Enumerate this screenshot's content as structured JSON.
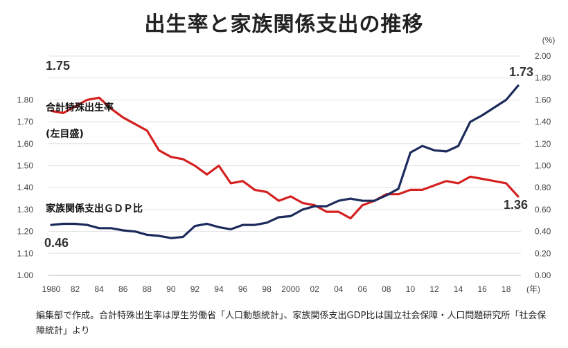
{
  "title": "出生率と家族関係支出の推移",
  "source_note": "編集部で作成。合計特殊出生率は厚生労働省「人口動態統計」、家族関係支出GDP比は国立社会保障・人口問題研究所「社会保障統計」より",
  "chart_data": {
    "type": "line",
    "title": "出生率と家族関係支出の推移",
    "x": [
      1980,
      1981,
      1982,
      1983,
      1984,
      1985,
      1986,
      1987,
      1988,
      1989,
      1990,
      1991,
      1992,
      1993,
      1994,
      1995,
      1996,
      1997,
      1998,
      1999,
      2000,
      2001,
      2002,
      2003,
      2004,
      2005,
      2006,
      2007,
      2008,
      2009,
      2010,
      2011,
      2012,
      2013,
      2014,
      2015,
      2016,
      2017,
      2018,
      2019
    ],
    "x_tick_labels": [
      "1980",
      "82",
      "84",
      "86",
      "88",
      "90",
      "92",
      "94",
      "96",
      "98",
      "2000",
      "02",
      "04",
      "06",
      "08",
      "10",
      "12",
      "14",
      "16",
      "18"
    ],
    "x_unit": "(年)",
    "left_axis": {
      "ylim": [
        1.0,
        2.0
      ],
      "ticks": [
        "1.00",
        "1.10",
        "1.20",
        "1.30",
        "1.40",
        "1.50",
        "1.60",
        "1.70",
        "1.80"
      ]
    },
    "right_axis": {
      "unit": "(%)",
      "ylim": [
        0.0,
        2.0
      ],
      "ticks": [
        "0.00",
        "0.20",
        "0.40",
        "0.60",
        "0.80",
        "1.00",
        "1.20",
        "1.40",
        "1.60",
        "1.80",
        "2.00"
      ]
    },
    "series": [
      {
        "name": "合計特殊出生率",
        "sublabel": "(左目盛)",
        "axis": "left",
        "color": "#d42020",
        "values": [
          1.75,
          1.74,
          1.77,
          1.8,
          1.81,
          1.76,
          1.72,
          1.69,
          1.66,
          1.57,
          1.54,
          1.53,
          1.5,
          1.46,
          1.5,
          1.42,
          1.43,
          1.39,
          1.38,
          1.34,
          1.36,
          1.33,
          1.32,
          1.29,
          1.29,
          1.26,
          1.32,
          1.34,
          1.37,
          1.37,
          1.39,
          1.39,
          1.41,
          1.43,
          1.42,
          1.45,
          1.44,
          1.43,
          1.42,
          1.36
        ]
      },
      {
        "name": "家族関係支出ＧＤＰ比",
        "axis": "right",
        "color": "#1b2b5c",
        "values": [
          0.46,
          0.47,
          0.47,
          0.46,
          0.43,
          0.43,
          0.41,
          0.4,
          0.37,
          0.36,
          0.34,
          0.35,
          0.45,
          0.47,
          0.44,
          0.42,
          0.46,
          0.46,
          0.48,
          0.53,
          0.54,
          0.6,
          0.63,
          0.63,
          0.68,
          0.7,
          0.68,
          0.68,
          0.73,
          0.79,
          1.12,
          1.18,
          1.14,
          1.13,
          1.18,
          1.4,
          1.46,
          1.53,
          1.6,
          1.73
        ]
      }
    ],
    "annotations": [
      "1.75",
      "1.73",
      "1.36",
      "0.46"
    ]
  }
}
